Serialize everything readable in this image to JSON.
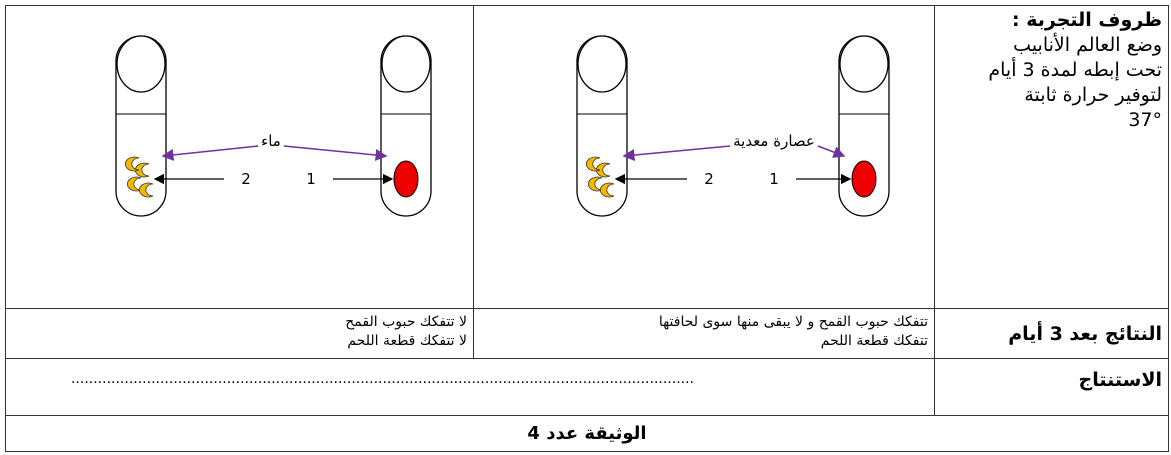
{
  "conditions": {
    "title": "ظروف التجربة :",
    "lines": [
      "وضع العالم الأنابيب",
      "تحت إبطه لمدة 3 أيام",
      "لتوفير حرارة ثابتة",
      "37°"
    ]
  },
  "experiments": [
    {
      "liquid": "عصارة معدية",
      "labels": [
        "1",
        "2"
      ]
    },
    {
      "liquid": "ماء",
      "labels": [
        "1",
        "2"
      ]
    }
  ],
  "results": {
    "title": "النتائج بعد 3 أيام",
    "cells": [
      [
        "تتفكك حبوب القمح و لا يبقى منها سوى لحافتها",
        "تتفكك قطعة اللحم"
      ],
      [
        "لا تتفكك حبوب القمح",
        "لا تتفكك قطعة اللحم"
      ]
    ]
  },
  "conclusion": {
    "title": "الاستنتاج",
    "blank": "............................................................................................................................................"
  },
  "caption": "الوثيقة عدد 4"
}
